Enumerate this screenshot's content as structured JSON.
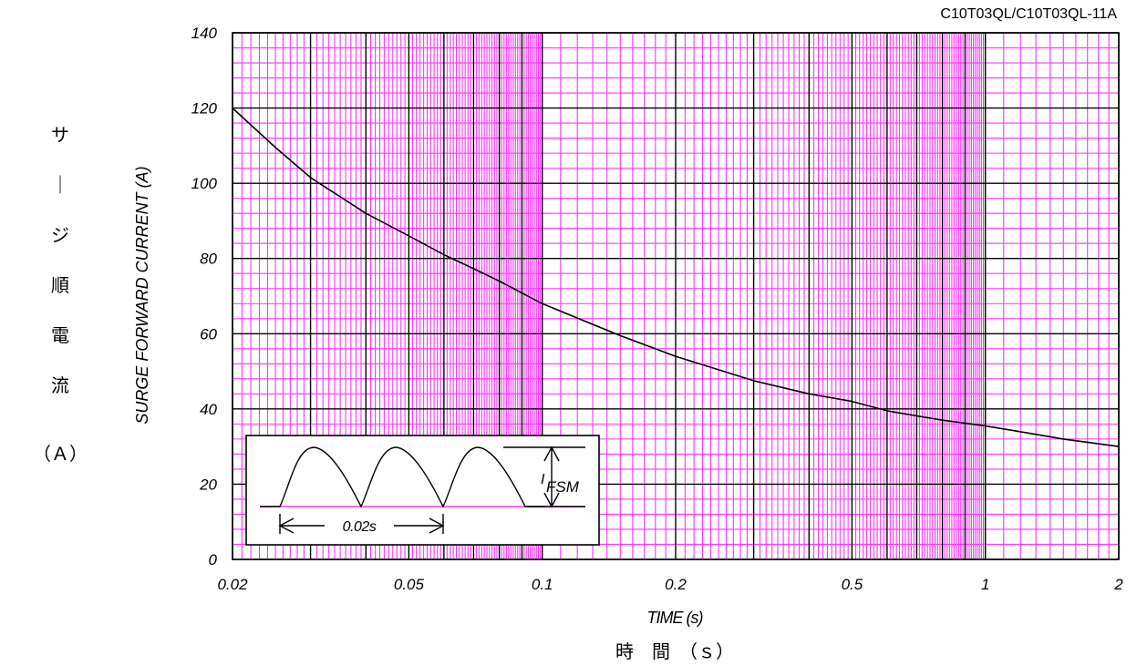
{
  "chart_data": {
    "type": "line",
    "title": "C10T03QL/C10T03QL-11A",
    "xlabel": "TIME (s)",
    "xlabel_jp": "時　間　（ｓ）",
    "ylabel": "SURGE FORWARD CURRENT (A)",
    "ylabel_jp": [
      "サ",
      "｜",
      "ジ",
      "順",
      "電",
      "流",
      "（Ａ）"
    ],
    "x_scale": "log",
    "xlim": [
      0.02,
      2
    ],
    "ylim": [
      0,
      140
    ],
    "x_ticks": [
      {
        "value": 0.02,
        "label": "0.02"
      },
      {
        "value": 0.05,
        "label": "0.05"
      },
      {
        "value": 0.1,
        "label": "0.1"
      },
      {
        "value": 0.2,
        "label": "0.2"
      },
      {
        "value": 0.5,
        "label": "0.5"
      },
      {
        "value": 1,
        "label": "1"
      },
      {
        "value": 2,
        "label": "2"
      }
    ],
    "y_ticks": [
      {
        "value": 0,
        "label": "0"
      },
      {
        "value": 20,
        "label": "20"
      },
      {
        "value": 40,
        "label": "40"
      },
      {
        "value": 60,
        "label": "60"
      },
      {
        "value": 80,
        "label": "80"
      },
      {
        "value": 100,
        "label": "100"
      },
      {
        "value": 120,
        "label": "120"
      },
      {
        "value": 140,
        "label": "140"
      }
    ],
    "grid": true,
    "colors": {
      "minor_grid": "#ff33ff",
      "major_grid": "#000000",
      "curve": "#000000"
    },
    "series": [
      {
        "x": [
          0.02,
          0.025,
          0.03,
          0.04,
          0.05,
          0.06,
          0.07,
          0.08,
          0.1,
          0.15,
          0.2,
          0.3,
          0.4,
          0.5,
          0.6,
          0.8,
          1.0,
          1.5,
          2.0
        ],
        "values": [
          120,
          109.5,
          101.5,
          92,
          86,
          81,
          77.3,
          74,
          68,
          59.5,
          54,
          47.5,
          44,
          42,
          39.5,
          37,
          35.5,
          32,
          30
        ]
      }
    ],
    "inset": {
      "legend_position": "bottom-left",
      "period_label": "0.02s",
      "amplitude_label": "I",
      "amplitude_subscript": "FSM"
    }
  }
}
